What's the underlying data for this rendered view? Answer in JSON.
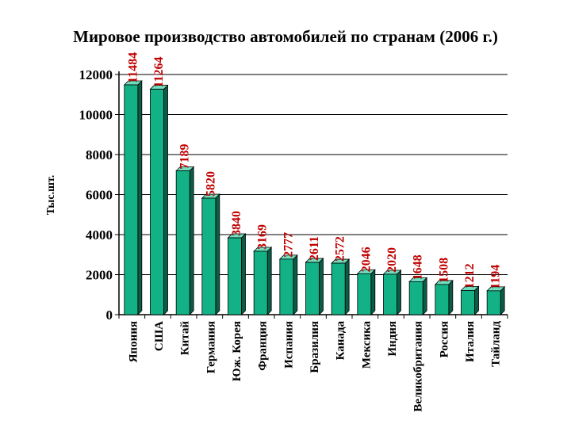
{
  "title": "Мировое производство автомобилей по странам (2006 г.)",
  "colors": {
    "bar_front": "#12b286",
    "bar_side": "#0b5c46",
    "bar_top": "#6fe0bf",
    "value_label": "#c00000",
    "axis": "#000000",
    "grid": "#000000"
  },
  "chart_data": {
    "type": "bar",
    "title": "Мировое производство автомобилей по странам (2006 г.)",
    "xlabel": "",
    "ylabel": "Тыс.шт.",
    "ylim": [
      0,
      12000
    ],
    "yticks": [
      0,
      2000,
      4000,
      6000,
      8000,
      10000,
      12000
    ],
    "grid": true,
    "legend": "none",
    "categories": [
      "Япония",
      "США",
      "Китай",
      "Германия",
      "Юж. Корея",
      "Франция",
      "Испания",
      "Бразилия",
      "Канада",
      "Мексика",
      "Индия",
      "Великобритания",
      "Россия",
      "Италия",
      "Тайланд"
    ],
    "values": [
      11484,
      11264,
      7189,
      5820,
      3840,
      3169,
      2777,
      2611,
      2572,
      2046,
      2020,
      1648,
      1508,
      1212,
      1194
    ]
  }
}
